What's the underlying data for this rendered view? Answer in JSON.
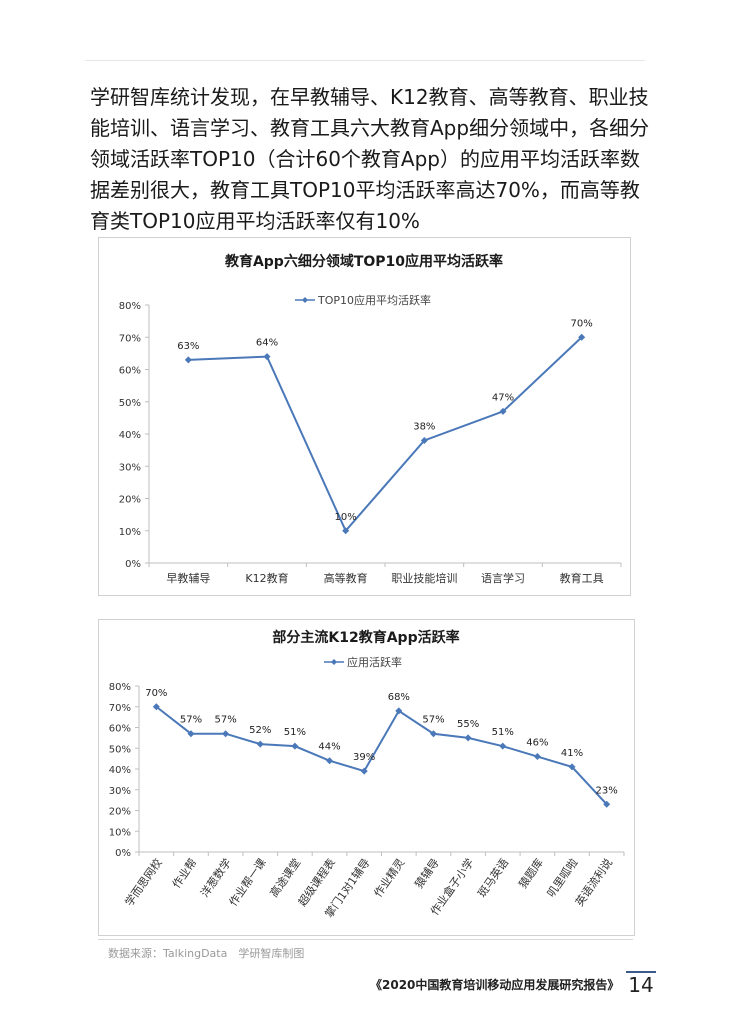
{
  "intro_text": "学研智库统计发现，在早教辅导、K12教育、高等教育、职业技能培训、语言学习、教育工具六大教育App细分领域中，各细分领域活跃率TOP10（合计60个教育App）的应用平均活跃率数据差别很大，教育工具TOP10平均活跃率高达70%，而高等教育类TOP10应用平均活跃率仅有10%",
  "chart_data": [
    {
      "type": "line",
      "title": "教育App六细分领域TOP10应用平均活跃率",
      "legend_placement": "top",
      "categories": [
        "早教辅导",
        "K12教育",
        "高等教育",
        "职业技能培训",
        "语言学习",
        "教育工具"
      ],
      "series": [
        {
          "name": "TOP10应用平均活跃率",
          "values": [
            63,
            64,
            10,
            38,
            47,
            70
          ]
        }
      ],
      "data_labels": [
        "63%",
        "64%",
        "10%",
        "38%",
        "47%",
        "70%"
      ],
      "ylim": [
        0,
        80
      ],
      "yticks": [
        "0%",
        "10%",
        "20%",
        "30%",
        "40%",
        "50%",
        "60%",
        "70%",
        "80%"
      ],
      "color": "#4a78b8",
      "grid": false
    },
    {
      "type": "line",
      "title": "部分主流K12教育App活跃率",
      "legend_placement": "top",
      "categories": [
        "学而思网校",
        "作业帮",
        "洋葱数学",
        "作业帮一课",
        "高途课堂",
        "超级课程表",
        "掌门1对1辅导",
        "作业精灵",
        "猿辅导",
        "作业盒子小学",
        "斑马英语",
        "猿题库",
        "叽里呱啦",
        "英语流利说"
      ],
      "series": [
        {
          "name": "应用活跃率",
          "values": [
            70,
            57,
            57,
            52,
            51,
            44,
            39,
            68,
            57,
            55,
            51,
            46,
            41,
            23
          ]
        }
      ],
      "data_labels": [
        "70%",
        "57%",
        "57%",
        "52%",
        "51%",
        "44%",
        "39%",
        "68%",
        "57%",
        "55%",
        "51%",
        "46%",
        "41%",
        "23%"
      ],
      "ylim": [
        0,
        80
      ],
      "yticks": [
        "0%",
        "10%",
        "20%",
        "30%",
        "40%",
        "50%",
        "60%",
        "70%",
        "80%"
      ],
      "color": "#4a78b8",
      "grid": false
    }
  ],
  "source_text": "数据来源：TalkingData　学研智库制图",
  "footer_title": "《2020中国教育培训移动应用发展研究报告》",
  "page_number": "14"
}
